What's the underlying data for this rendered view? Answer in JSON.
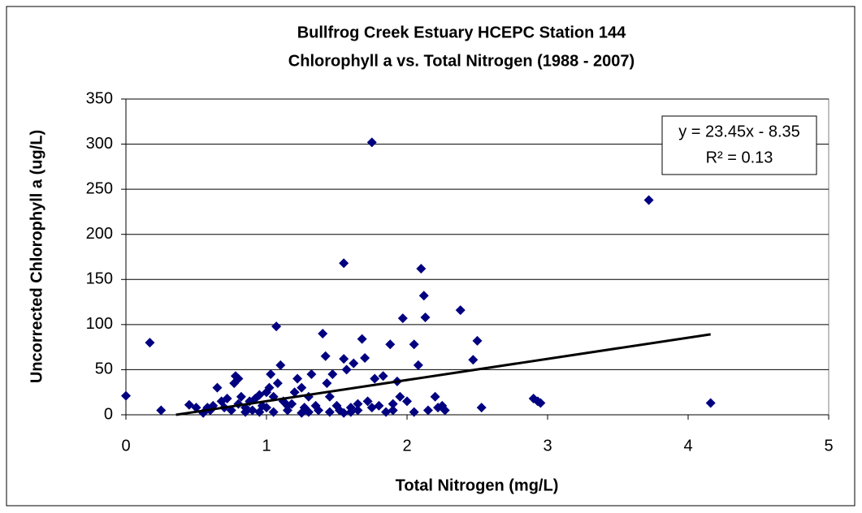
{
  "chart_data": {
    "type": "scatter",
    "title": [
      "Bullfrog Creek Estuary HCEPC Station 144",
      "Chlorophyll a vs. Total Nitrogen (1988 - 2007)"
    ],
    "x_label": "Total Nitrogen (mg/L)",
    "y_label": "Uncorrected Chlorophyll a (ug/L)",
    "x": [
      0,
      0.17,
      0.25,
      0.45,
      0.5,
      0.55,
      0.58,
      0.62,
      0.65,
      0.68,
      0.7,
      0.72,
      0.75,
      0.77,
      0.78,
      0.8,
      0.8,
      0.82,
      0.85,
      0.88,
      0.9,
      0.92,
      0.95,
      0.97,
      1.0,
      1.0,
      1.02,
      1.03,
      1.05,
      1.07,
      1.08,
      1.1,
      1.12,
      1.15,
      1.18,
      1.2,
      1.22,
      1.25,
      1.27,
      1.3,
      1.32,
      1.35,
      1.37,
      1.4,
      1.42,
      1.43,
      1.45,
      1.47,
      1.5,
      1.52,
      1.55,
      1.55,
      1.57,
      1.6,
      1.62,
      1.65,
      1.68,
      1.7,
      1.72,
      1.75,
      1.77,
      1.8,
      1.83,
      1.88,
      1.9,
      1.93,
      1.95,
      1.97,
      2.0,
      2.05,
      2.08,
      2.1,
      2.12,
      2.13,
      2.15,
      2.2,
      2.22,
      2.25,
      2.27,
      2.38,
      2.47,
      2.5,
      2.53,
      2.9,
      2.93,
      2.95,
      3.72,
      4.16,
      0.6,
      0.85,
      0.95,
      1.05,
      1.15,
      1.25,
      1.3,
      1.45,
      1.55,
      1.6,
      1.65,
      1.75,
      1.85,
      1.9,
      2.05
    ],
    "series": [
      {
        "name": "Chlorophyll a",
        "color": "#000080",
        "values": [
          21,
          80,
          5,
          11,
          8,
          2,
          8,
          10,
          30,
          15,
          8,
          18,
          5,
          35,
          43,
          40,
          12,
          20,
          8,
          15,
          5,
          18,
          22,
          10,
          25,
          8,
          30,
          45,
          20,
          98,
          35,
          55,
          15,
          5,
          12,
          25,
          40,
          30,
          8,
          20,
          45,
          10,
          5,
          90,
          65,
          35,
          20,
          45,
          10,
          5,
          168,
          62,
          50,
          8,
          57,
          12,
          84,
          63,
          15,
          302,
          40,
          10,
          43,
          78,
          5,
          37,
          20,
          107,
          15,
          78,
          55,
          162,
          132,
          108,
          5,
          20,
          8,
          10,
          5,
          116,
          61,
          82,
          8,
          18,
          15,
          13,
          238,
          13,
          5,
          3,
          3,
          3,
          10,
          2,
          3,
          3,
          2,
          3,
          5,
          8,
          3,
          12,
          3
        ]
      }
    ],
    "trendline": {
      "slope": 23.45,
      "intercept": -8.35,
      "equation": "y = 23.45x - 8.35",
      "r_squared": "R² = 0.13"
    },
    "xlim": [
      0,
      5
    ],
    "xticks": [
      0,
      1,
      2,
      3,
      4,
      5
    ],
    "ylim": [
      0,
      350
    ],
    "yticks": [
      0,
      50,
      100,
      150,
      200,
      250,
      300,
      350
    ],
    "grid": true
  }
}
